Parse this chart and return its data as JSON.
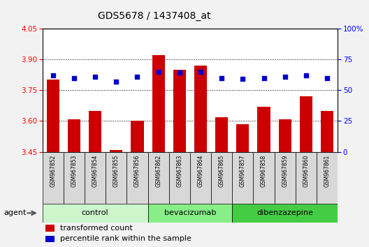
{
  "title": "GDS5678 / 1437408_at",
  "samples": [
    "GSM967852",
    "GSM967853",
    "GSM967854",
    "GSM967855",
    "GSM967856",
    "GSM967862",
    "GSM967863",
    "GSM967864",
    "GSM967865",
    "GSM967857",
    "GSM967858",
    "GSM967859",
    "GSM967860",
    "GSM967861"
  ],
  "transformed_count": [
    3.8,
    3.61,
    3.65,
    3.46,
    3.6,
    3.92,
    3.85,
    3.87,
    3.62,
    3.585,
    3.67,
    3.61,
    3.72,
    3.65
  ],
  "percentile_rank": [
    62,
    60,
    61,
    57,
    61,
    65,
    64,
    65,
    60,
    59,
    60,
    61,
    62,
    60
  ],
  "groups": [
    {
      "label": "control",
      "start": 0,
      "end": 5,
      "color": "#ccf5cc"
    },
    {
      "label": "bevacizumab",
      "start": 5,
      "end": 9,
      "color": "#88ee88"
    },
    {
      "label": "dibenzazepine",
      "start": 9,
      "end": 14,
      "color": "#44cc44"
    }
  ],
  "ylim_left": [
    3.45,
    4.05
  ],
  "ylim_right": [
    0,
    100
  ],
  "yticks_left": [
    3.45,
    3.6,
    3.75,
    3.9,
    4.05
  ],
  "yticks_right": [
    0,
    25,
    50,
    75,
    100
  ],
  "bar_color": "#cc0000",
  "dot_color": "#0000cc",
  "plot_bg_color": "#ffffff",
  "agent_label": "agent",
  "legend_items": [
    "transformed count",
    "percentile rank within the sample"
  ]
}
